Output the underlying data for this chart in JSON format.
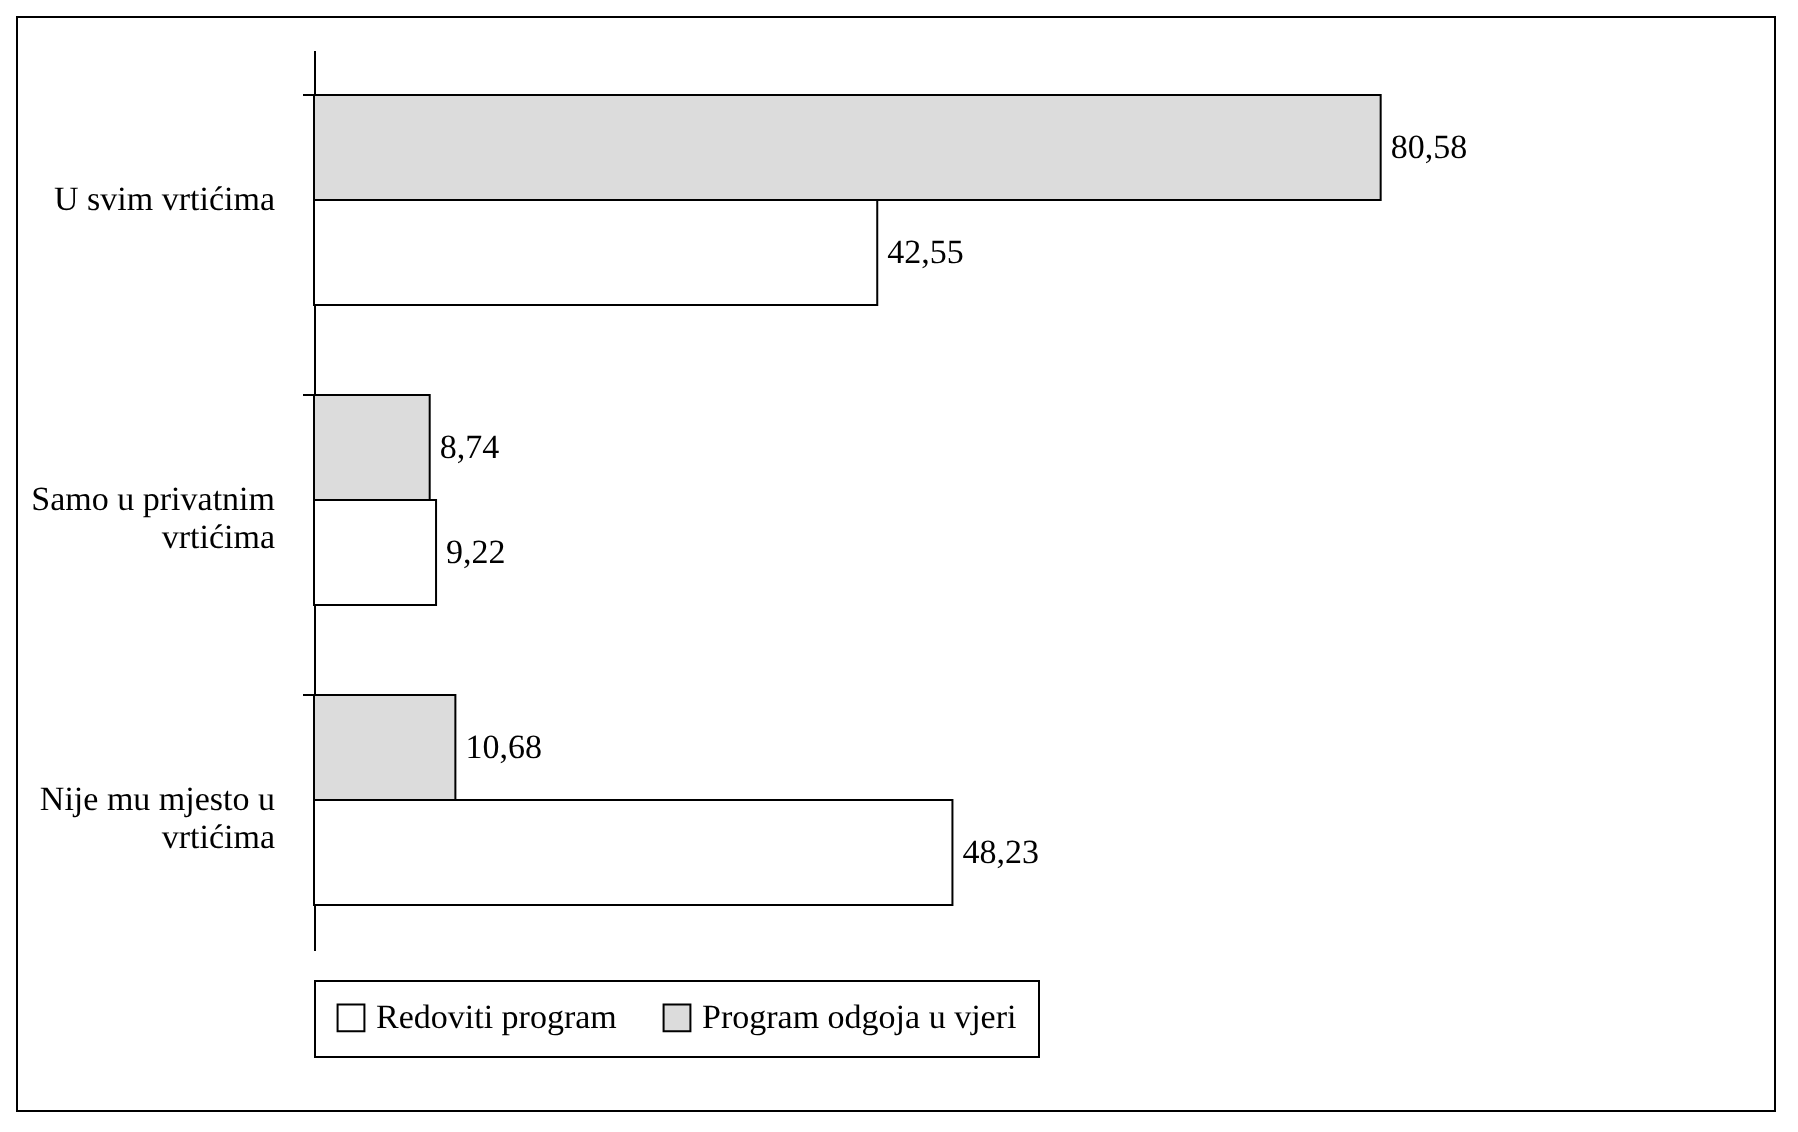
{
  "chart_data": {
    "type": "bar",
    "orientation": "horizontal",
    "categories": [
      "U svim vrtićima",
      "Samo u privatnim vrtićima",
      "Nije mu mjesto u vrtićima"
    ],
    "series": [
      {
        "name": "Redoviti program",
        "color": "#ffffff",
        "values": [
          42.55,
          9.22,
          48.23
        ],
        "value_labels": [
          "42,55",
          "9,22",
          "48,23"
        ]
      },
      {
        "name": "Program odgoja u vjeri",
        "color": "#dcdcdc",
        "values": [
          80.58,
          8.74,
          10.68
        ],
        "value_labels": [
          "80,58",
          "8,74",
          "10,68"
        ]
      }
    ],
    "legend": "bottom"
  }
}
